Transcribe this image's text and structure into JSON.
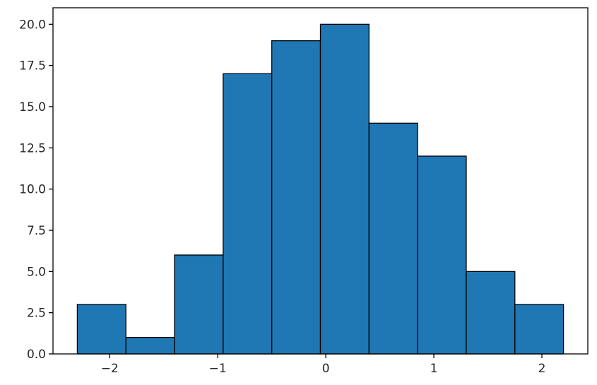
{
  "chart_data": {
    "type": "histogram",
    "title": "",
    "xlabel": "",
    "ylabel": "",
    "bin_edges": [
      -2.3,
      -1.85,
      -1.4,
      -0.95,
      -0.5,
      -0.05,
      0.4,
      0.85,
      1.3,
      1.75,
      2.2
    ],
    "counts": [
      3,
      1,
      6,
      17,
      19,
      20,
      14,
      12,
      5,
      3
    ],
    "xlim": [
      -2.525,
      2.425
    ],
    "ylim": [
      0,
      21
    ],
    "xticks": [
      -2,
      -1,
      0,
      1,
      2
    ],
    "xtick_labels": [
      "−2",
      "−1",
      "0",
      "1",
      "2"
    ],
    "yticks": [
      0,
      2.5,
      5,
      7.5,
      10,
      12.5,
      15,
      17.5,
      20
    ],
    "ytick_labels": [
      "0.0",
      "2.5",
      "5.0",
      "7.5",
      "10.0",
      "12.5",
      "15.0",
      "17.5",
      "20.0"
    ],
    "bar_color": "#1f77b4",
    "edge_color": "#000000",
    "grid": false,
    "legend": "none"
  }
}
